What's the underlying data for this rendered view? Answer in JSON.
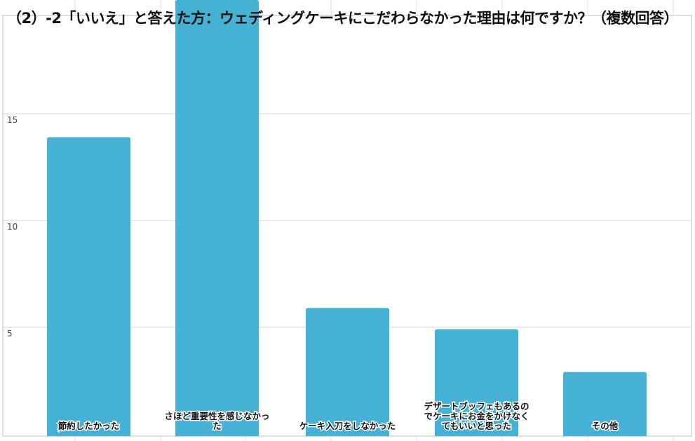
{
  "chart_data": {
    "type": "bar",
    "title": "（2）-2「いいえ」と答えた方：ウェディングケーキにこだわらなかった理由は何ですか？（複数回答）",
    "categories": [
      "節約したかった",
      "さほど重要性を感じなかった",
      "ケーキ入刀をしなかった",
      "デザートブッフェもあるのでケーキにお金をかけなくてもいいと思った",
      "その他"
    ],
    "category_lines": [
      [
        "節約したかった"
      ],
      [
        "さほど重要性を感じなかっ",
        "た"
      ],
      [
        "ケーキ入刀をしなかった"
      ],
      [
        "デザートブッフェもあるの",
        "でケーキにお金をかけなく",
        "てもいいと思った"
      ],
      [
        "その他"
      ]
    ],
    "values": [
      14,
      21,
      6,
      5,
      3
    ],
    "yticks": [
      5,
      10,
      15
    ],
    "ylim": [
      0,
      20.4
    ],
    "xlabel": "",
    "ylabel": "",
    "grid": true,
    "bar_color": "#45b1d5"
  }
}
